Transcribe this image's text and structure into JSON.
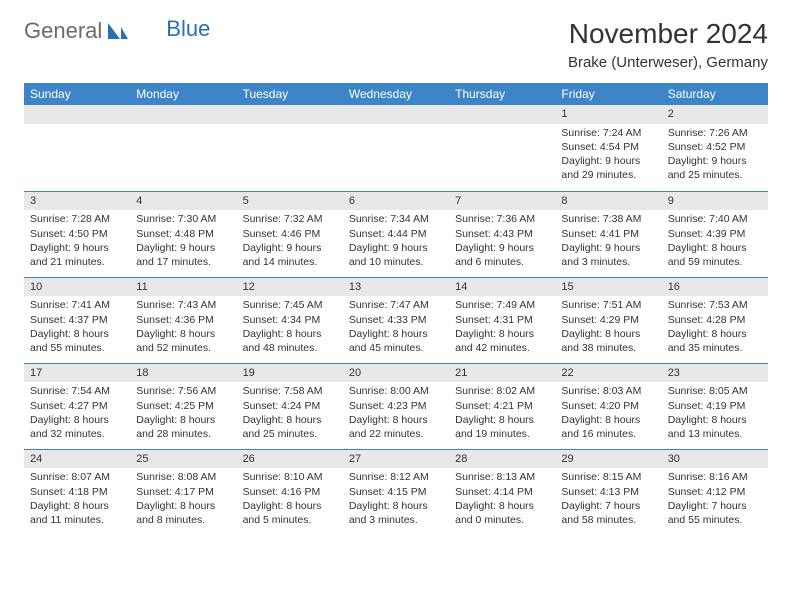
{
  "logo": {
    "text_general": "General",
    "text_blue": "Blue"
  },
  "header": {
    "month_title": "November 2024",
    "location": "Brake (Unterweser), Germany"
  },
  "colors": {
    "header_bg": "#3d85c6",
    "daynum_bg": "#e8e8e8",
    "border": "#3d85c6",
    "text": "#333333"
  },
  "weekdays": [
    "Sunday",
    "Monday",
    "Tuesday",
    "Wednesday",
    "Thursday",
    "Friday",
    "Saturday"
  ],
  "weeks": [
    [
      {
        "day": "",
        "sunrise": "",
        "sunset": "",
        "daylight": ""
      },
      {
        "day": "",
        "sunrise": "",
        "sunset": "",
        "daylight": ""
      },
      {
        "day": "",
        "sunrise": "",
        "sunset": "",
        "daylight": ""
      },
      {
        "day": "",
        "sunrise": "",
        "sunset": "",
        "daylight": ""
      },
      {
        "day": "",
        "sunrise": "",
        "sunset": "",
        "daylight": ""
      },
      {
        "day": "1",
        "sunrise": "Sunrise: 7:24 AM",
        "sunset": "Sunset: 4:54 PM",
        "daylight": "Daylight: 9 hours and 29 minutes."
      },
      {
        "day": "2",
        "sunrise": "Sunrise: 7:26 AM",
        "sunset": "Sunset: 4:52 PM",
        "daylight": "Daylight: 9 hours and 25 minutes."
      }
    ],
    [
      {
        "day": "3",
        "sunrise": "Sunrise: 7:28 AM",
        "sunset": "Sunset: 4:50 PM",
        "daylight": "Daylight: 9 hours and 21 minutes."
      },
      {
        "day": "4",
        "sunrise": "Sunrise: 7:30 AM",
        "sunset": "Sunset: 4:48 PM",
        "daylight": "Daylight: 9 hours and 17 minutes."
      },
      {
        "day": "5",
        "sunrise": "Sunrise: 7:32 AM",
        "sunset": "Sunset: 4:46 PM",
        "daylight": "Daylight: 9 hours and 14 minutes."
      },
      {
        "day": "6",
        "sunrise": "Sunrise: 7:34 AM",
        "sunset": "Sunset: 4:44 PM",
        "daylight": "Daylight: 9 hours and 10 minutes."
      },
      {
        "day": "7",
        "sunrise": "Sunrise: 7:36 AM",
        "sunset": "Sunset: 4:43 PM",
        "daylight": "Daylight: 9 hours and 6 minutes."
      },
      {
        "day": "8",
        "sunrise": "Sunrise: 7:38 AM",
        "sunset": "Sunset: 4:41 PM",
        "daylight": "Daylight: 9 hours and 3 minutes."
      },
      {
        "day": "9",
        "sunrise": "Sunrise: 7:40 AM",
        "sunset": "Sunset: 4:39 PM",
        "daylight": "Daylight: 8 hours and 59 minutes."
      }
    ],
    [
      {
        "day": "10",
        "sunrise": "Sunrise: 7:41 AM",
        "sunset": "Sunset: 4:37 PM",
        "daylight": "Daylight: 8 hours and 55 minutes."
      },
      {
        "day": "11",
        "sunrise": "Sunrise: 7:43 AM",
        "sunset": "Sunset: 4:36 PM",
        "daylight": "Daylight: 8 hours and 52 minutes."
      },
      {
        "day": "12",
        "sunrise": "Sunrise: 7:45 AM",
        "sunset": "Sunset: 4:34 PM",
        "daylight": "Daylight: 8 hours and 48 minutes."
      },
      {
        "day": "13",
        "sunrise": "Sunrise: 7:47 AM",
        "sunset": "Sunset: 4:33 PM",
        "daylight": "Daylight: 8 hours and 45 minutes."
      },
      {
        "day": "14",
        "sunrise": "Sunrise: 7:49 AM",
        "sunset": "Sunset: 4:31 PM",
        "daylight": "Daylight: 8 hours and 42 minutes."
      },
      {
        "day": "15",
        "sunrise": "Sunrise: 7:51 AM",
        "sunset": "Sunset: 4:29 PM",
        "daylight": "Daylight: 8 hours and 38 minutes."
      },
      {
        "day": "16",
        "sunrise": "Sunrise: 7:53 AM",
        "sunset": "Sunset: 4:28 PM",
        "daylight": "Daylight: 8 hours and 35 minutes."
      }
    ],
    [
      {
        "day": "17",
        "sunrise": "Sunrise: 7:54 AM",
        "sunset": "Sunset: 4:27 PM",
        "daylight": "Daylight: 8 hours and 32 minutes."
      },
      {
        "day": "18",
        "sunrise": "Sunrise: 7:56 AM",
        "sunset": "Sunset: 4:25 PM",
        "daylight": "Daylight: 8 hours and 28 minutes."
      },
      {
        "day": "19",
        "sunrise": "Sunrise: 7:58 AM",
        "sunset": "Sunset: 4:24 PM",
        "daylight": "Daylight: 8 hours and 25 minutes."
      },
      {
        "day": "20",
        "sunrise": "Sunrise: 8:00 AM",
        "sunset": "Sunset: 4:23 PM",
        "daylight": "Daylight: 8 hours and 22 minutes."
      },
      {
        "day": "21",
        "sunrise": "Sunrise: 8:02 AM",
        "sunset": "Sunset: 4:21 PM",
        "daylight": "Daylight: 8 hours and 19 minutes."
      },
      {
        "day": "22",
        "sunrise": "Sunrise: 8:03 AM",
        "sunset": "Sunset: 4:20 PM",
        "daylight": "Daylight: 8 hours and 16 minutes."
      },
      {
        "day": "23",
        "sunrise": "Sunrise: 8:05 AM",
        "sunset": "Sunset: 4:19 PM",
        "daylight": "Daylight: 8 hours and 13 minutes."
      }
    ],
    [
      {
        "day": "24",
        "sunrise": "Sunrise: 8:07 AM",
        "sunset": "Sunset: 4:18 PM",
        "daylight": "Daylight: 8 hours and 11 minutes."
      },
      {
        "day": "25",
        "sunrise": "Sunrise: 8:08 AM",
        "sunset": "Sunset: 4:17 PM",
        "daylight": "Daylight: 8 hours and 8 minutes."
      },
      {
        "day": "26",
        "sunrise": "Sunrise: 8:10 AM",
        "sunset": "Sunset: 4:16 PM",
        "daylight": "Daylight: 8 hours and 5 minutes."
      },
      {
        "day": "27",
        "sunrise": "Sunrise: 8:12 AM",
        "sunset": "Sunset: 4:15 PM",
        "daylight": "Daylight: 8 hours and 3 minutes."
      },
      {
        "day": "28",
        "sunrise": "Sunrise: 8:13 AM",
        "sunset": "Sunset: 4:14 PM",
        "daylight": "Daylight: 8 hours and 0 minutes."
      },
      {
        "day": "29",
        "sunrise": "Sunrise: 8:15 AM",
        "sunset": "Sunset: 4:13 PM",
        "daylight": "Daylight: 7 hours and 58 minutes."
      },
      {
        "day": "30",
        "sunrise": "Sunrise: 8:16 AM",
        "sunset": "Sunset: 4:12 PM",
        "daylight": "Daylight: 7 hours and 55 minutes."
      }
    ]
  ]
}
